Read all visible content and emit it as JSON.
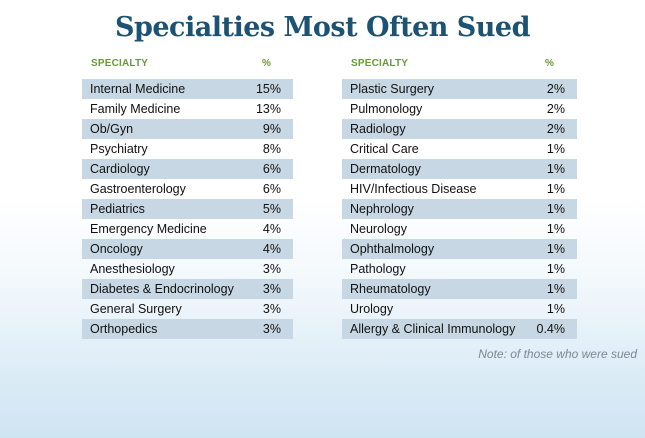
{
  "title": "Specialties Most Often Sued",
  "note": "Note: of those who were sued",
  "chart_data": {
    "type": "table",
    "title": "Specialties Most Often Sued",
    "columns": [
      "SPECIALTY",
      "%"
    ],
    "tables": [
      {
        "header": {
          "specialty": "SPECIALTY",
          "pct": "%"
        },
        "rows": [
          {
            "specialty": "Internal Medicine",
            "pct": "15%",
            "value": 15
          },
          {
            "specialty": "Family Medicine",
            "pct": "13%",
            "value": 13
          },
          {
            "specialty": "Ob/Gyn",
            "pct": "9%",
            "value": 9
          },
          {
            "specialty": "Psychiatry",
            "pct": "8%",
            "value": 8
          },
          {
            "specialty": "Cardiology",
            "pct": "6%",
            "value": 6
          },
          {
            "specialty": "Gastroenterology",
            "pct": "6%",
            "value": 6
          },
          {
            "specialty": "Pediatrics",
            "pct": "5%",
            "value": 5
          },
          {
            "specialty": "Emergency Medicine",
            "pct": "4%",
            "value": 4
          },
          {
            "specialty": "Oncology",
            "pct": "4%",
            "value": 4
          },
          {
            "specialty": "Anesthesiology",
            "pct": "3%",
            "value": 3
          },
          {
            "specialty": "Diabetes & Endocrinology",
            "pct": "3%",
            "value": 3
          },
          {
            "specialty": "General Surgery",
            "pct": "3%",
            "value": 3
          },
          {
            "specialty": "Orthopedics",
            "pct": "3%",
            "value": 3
          }
        ]
      },
      {
        "header": {
          "specialty": "SPECIALTY",
          "pct": "%"
        },
        "rows": [
          {
            "specialty": "Plastic Surgery",
            "pct": "2%",
            "value": 2
          },
          {
            "specialty": "Pulmonology",
            "pct": "2%",
            "value": 2
          },
          {
            "specialty": "Radiology",
            "pct": "2%",
            "value": 2
          },
          {
            "specialty": "Critical Care",
            "pct": "1%",
            "value": 1
          },
          {
            "specialty": "Dermatology",
            "pct": "1%",
            "value": 1
          },
          {
            "specialty": "HIV/Infectious Disease",
            "pct": "1%",
            "value": 1
          },
          {
            "specialty": "Nephrology",
            "pct": "1%",
            "value": 1
          },
          {
            "specialty": "Neurology",
            "pct": "1%",
            "value": 1
          },
          {
            "specialty": "Ophthalmology",
            "pct": "1%",
            "value": 1
          },
          {
            "specialty": "Pathology",
            "pct": "1%",
            "value": 1
          },
          {
            "specialty": "Rheumatology",
            "pct": "1%",
            "value": 1
          },
          {
            "specialty": "Urology",
            "pct": "1%",
            "value": 1
          },
          {
            "specialty": "Allergy & Clinical Immunology",
            "pct": "0.4%",
            "value": 0.4
          }
        ]
      }
    ]
  },
  "colors": {
    "title": "#1c5273",
    "header": "#6a9a34",
    "row_shade": "#c7d8e4",
    "note": "#7b8893"
  }
}
